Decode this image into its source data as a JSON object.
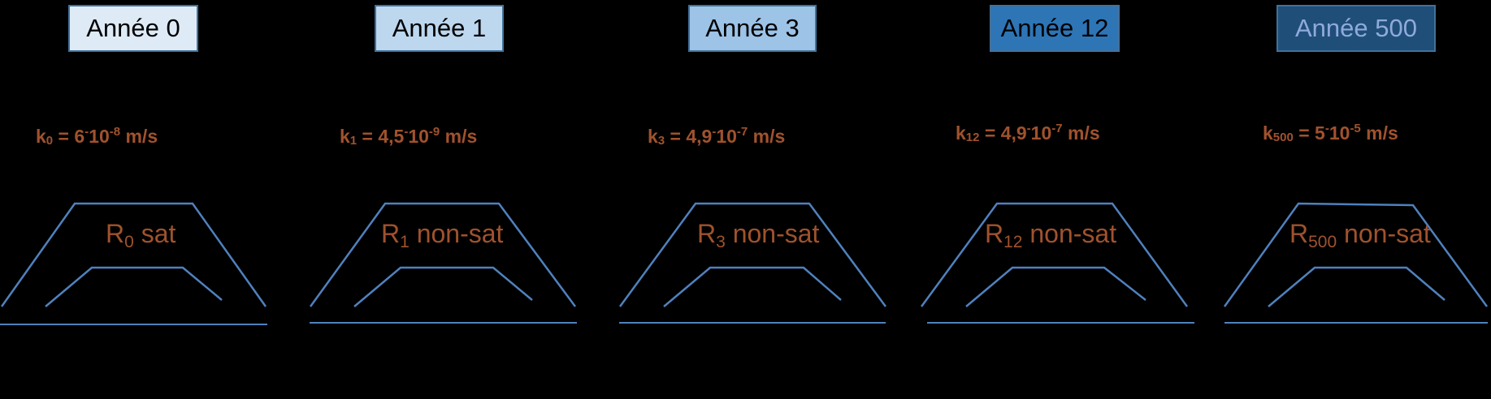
{
  "panels": [
    {
      "year": "Année 0",
      "box_fill": "#deebf7",
      "box_text": "#000000",
      "k_sub": "0",
      "k_eq": " = 6",
      "k_sep": "-",
      "k_ten": "10",
      "k_exp": "-8",
      "k_unit": " m/s",
      "r_sub": "0",
      "r_state": " sat"
    },
    {
      "year": "Année 1",
      "box_fill": "#bdd7ee",
      "box_text": "#000000",
      "k_sub": "1",
      "k_eq": " = 4,5",
      "k_sep": "-",
      "k_ten": "10",
      "k_exp": "-9",
      "k_unit": " m/s",
      "r_sub": "1",
      "r_state": " non-sat"
    },
    {
      "year": "Année 3",
      "box_fill": "#9dc3e6",
      "box_text": "#000000",
      "k_sub": "3",
      "k_eq": " = 4,9",
      "k_sep": "-",
      "k_ten": "10",
      "k_exp": "-7",
      "k_unit": " m/s",
      "r_sub": "3",
      "r_state": " non-sat"
    },
    {
      "year": "Année 12",
      "box_fill": "#2e75b6",
      "box_text": "#000000",
      "k_sub": "12",
      "k_eq": " = 4,9",
      "k_sep": "-",
      "k_ten": "10",
      "k_exp": "-7",
      "k_unit": " m/s",
      "r_sub": "12",
      "r_state": " non-sat"
    },
    {
      "year": "Année 500",
      "box_fill": "#1f4e79",
      "box_text": "#8faadc",
      "k_sub": "500",
      "k_eq": " = 5",
      "k_sep": "-",
      "k_ten": "10",
      "k_exp": "-5",
      "k_unit": " m/s",
      "r_sub": "500",
      "r_state": " non-sat"
    }
  ],
  "colors": {
    "background": "#000000",
    "outline": "#4f81bd",
    "label": "#a0522d"
  }
}
